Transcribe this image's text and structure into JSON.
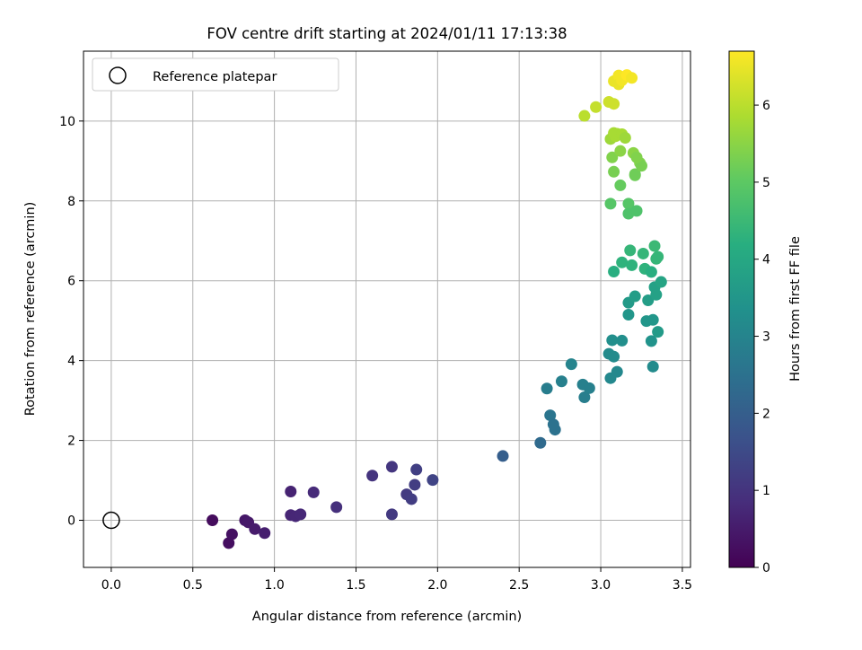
{
  "chart_data": {
    "type": "scatter",
    "title": "FOV centre drift starting at 2024/01/11 17:13:38",
    "xlabel": "Angular distance from reference (arcmin)",
    "ylabel": "Rotation from reference (arcmin)",
    "xlim": [
      -0.17,
      3.55
    ],
    "ylim": [
      -1.18,
      11.75
    ],
    "x_ticks": [
      0.0,
      0.5,
      1.0,
      1.5,
      2.0,
      2.5,
      3.0,
      3.5
    ],
    "x_tick_labels": [
      "0.0",
      "0.5",
      "1.0",
      "1.5",
      "2.0",
      "2.5",
      "3.0",
      "3.5"
    ],
    "y_ticks": [
      0,
      2,
      4,
      6,
      8,
      10
    ],
    "y_tick_labels": [
      "0",
      "2",
      "4",
      "6",
      "8",
      "10"
    ],
    "grid": true,
    "legend": {
      "position": "top-left",
      "entries": [
        "Reference platepar"
      ]
    },
    "reference_point": {
      "x": 0.0,
      "y": 0.0
    },
    "colorbar": {
      "label": "Hours from first FF file",
      "range": [
        0,
        6.7
      ],
      "ticks": [
        0,
        1,
        2,
        3,
        4,
        5,
        6
      ],
      "tick_labels": [
        "0",
        "1",
        "2",
        "3",
        "4",
        "5",
        "6"
      ],
      "colormap": "viridis"
    },
    "points": [
      {
        "x": 0.62,
        "y": 0.0,
        "t": 0.2
      },
      {
        "x": 0.72,
        "y": -0.57,
        "t": 0.25
      },
      {
        "x": 0.74,
        "y": -0.35,
        "t": 0.3
      },
      {
        "x": 0.82,
        "y": 0.0,
        "t": 0.4
      },
      {
        "x": 0.84,
        "y": -0.05,
        "t": 0.45
      },
      {
        "x": 0.88,
        "y": -0.22,
        "t": 0.5
      },
      {
        "x": 0.94,
        "y": -0.32,
        "t": 0.55
      },
      {
        "x": 1.1,
        "y": 0.72,
        "t": 0.65
      },
      {
        "x": 1.1,
        "y": 0.13,
        "t": 0.7
      },
      {
        "x": 1.13,
        "y": 0.1,
        "t": 0.72
      },
      {
        "x": 1.16,
        "y": 0.15,
        "t": 0.75
      },
      {
        "x": 1.24,
        "y": 0.7,
        "t": 0.8
      },
      {
        "x": 1.38,
        "y": 0.33,
        "t": 0.9
      },
      {
        "x": 1.6,
        "y": 1.12,
        "t": 1.0
      },
      {
        "x": 1.72,
        "y": 1.34,
        "t": 1.05
      },
      {
        "x": 1.72,
        "y": 0.15,
        "t": 1.1
      },
      {
        "x": 1.81,
        "y": 0.65,
        "t": 1.15
      },
      {
        "x": 1.84,
        "y": 0.53,
        "t": 1.2
      },
      {
        "x": 1.86,
        "y": 0.89,
        "t": 1.2
      },
      {
        "x": 1.87,
        "y": 1.27,
        "t": 1.25
      },
      {
        "x": 1.97,
        "y": 1.01,
        "t": 1.35
      },
      {
        "x": 2.4,
        "y": 1.61,
        "t": 2.0
      },
      {
        "x": 2.63,
        "y": 1.94,
        "t": 2.3
      },
      {
        "x": 2.67,
        "y": 3.3,
        "t": 2.8
      },
      {
        "x": 2.69,
        "y": 2.63,
        "t": 2.6
      },
      {
        "x": 2.71,
        "y": 2.4,
        "t": 2.5
      },
      {
        "x": 2.72,
        "y": 2.27,
        "t": 2.5
      },
      {
        "x": 2.76,
        "y": 3.48,
        "t": 2.9
      },
      {
        "x": 2.82,
        "y": 3.91,
        "t": 3.0
      },
      {
        "x": 2.89,
        "y": 3.4,
        "t": 2.9
      },
      {
        "x": 2.9,
        "y": 3.08,
        "t": 2.85
      },
      {
        "x": 2.93,
        "y": 3.31,
        "t": 2.9
      },
      {
        "x": 3.05,
        "y": 4.17,
        "t": 3.2
      },
      {
        "x": 3.06,
        "y": 3.56,
        "t": 3.1
      },
      {
        "x": 3.07,
        "y": 4.51,
        "t": 3.3
      },
      {
        "x": 3.08,
        "y": 4.1,
        "t": 3.2
      },
      {
        "x": 3.1,
        "y": 3.72,
        "t": 3.1
      },
      {
        "x": 3.13,
        "y": 4.5,
        "t": 3.3
      },
      {
        "x": 3.17,
        "y": 5.15,
        "t": 3.5
      },
      {
        "x": 3.17,
        "y": 5.45,
        "t": 3.6
      },
      {
        "x": 3.21,
        "y": 5.61,
        "t": 3.7
      },
      {
        "x": 3.28,
        "y": 4.99,
        "t": 3.5
      },
      {
        "x": 3.29,
        "y": 5.51,
        "t": 3.7
      },
      {
        "x": 3.31,
        "y": 4.49,
        "t": 3.4
      },
      {
        "x": 3.32,
        "y": 5.02,
        "t": 3.5
      },
      {
        "x": 3.32,
        "y": 3.85,
        "t": 3.2
      },
      {
        "x": 3.33,
        "y": 5.84,
        "t": 3.8
      },
      {
        "x": 3.34,
        "y": 5.65,
        "t": 3.8
      },
      {
        "x": 3.35,
        "y": 4.72,
        "t": 3.6
      },
      {
        "x": 3.37,
        "y": 5.97,
        "t": 3.9
      },
      {
        "x": 3.08,
        "y": 6.23,
        "t": 4.2
      },
      {
        "x": 3.13,
        "y": 6.46,
        "t": 4.3
      },
      {
        "x": 3.18,
        "y": 6.76,
        "t": 4.4
      },
      {
        "x": 3.19,
        "y": 6.39,
        "t": 4.3
      },
      {
        "x": 3.26,
        "y": 6.68,
        "t": 4.4
      },
      {
        "x": 3.27,
        "y": 6.3,
        "t": 4.3
      },
      {
        "x": 3.31,
        "y": 6.22,
        "t": 4.2
      },
      {
        "x": 3.33,
        "y": 6.87,
        "t": 4.5
      },
      {
        "x": 3.34,
        "y": 6.55,
        "t": 4.4
      },
      {
        "x": 3.35,
        "y": 6.6,
        "t": 4.4
      },
      {
        "x": 3.06,
        "y": 7.93,
        "t": 4.9
      },
      {
        "x": 3.17,
        "y": 7.93,
        "t": 4.9
      },
      {
        "x": 3.17,
        "y": 7.68,
        "t": 4.8
      },
      {
        "x": 3.22,
        "y": 7.75,
        "t": 4.8
      },
      {
        "x": 3.12,
        "y": 8.39,
        "t": 5.1
      },
      {
        "x": 3.08,
        "y": 8.73,
        "t": 5.3
      },
      {
        "x": 3.21,
        "y": 8.64,
        "t": 5.2
      },
      {
        "x": 3.21,
        "y": 8.67,
        "t": 5.2
      },
      {
        "x": 3.24,
        "y": 8.95,
        "t": 5.4
      },
      {
        "x": 3.25,
        "y": 8.88,
        "t": 5.3
      },
      {
        "x": 3.07,
        "y": 9.09,
        "t": 5.4
      },
      {
        "x": 3.12,
        "y": 9.25,
        "t": 5.5
      },
      {
        "x": 3.2,
        "y": 9.2,
        "t": 5.5
      },
      {
        "x": 3.22,
        "y": 9.09,
        "t": 5.4
      },
      {
        "x": 3.06,
        "y": 9.55,
        "t": 5.7
      },
      {
        "x": 3.08,
        "y": 9.7,
        "t": 5.8
      },
      {
        "x": 3.09,
        "y": 9.62,
        "t": 5.8
      },
      {
        "x": 3.1,
        "y": 9.68,
        "t": 5.8
      },
      {
        "x": 3.13,
        "y": 9.67,
        "t": 5.8
      },
      {
        "x": 3.15,
        "y": 9.58,
        "t": 5.7
      },
      {
        "x": 2.9,
        "y": 10.13,
        "t": 6.0
      },
      {
        "x": 2.97,
        "y": 10.35,
        "t": 6.1
      },
      {
        "x": 3.05,
        "y": 10.48,
        "t": 6.2
      },
      {
        "x": 3.08,
        "y": 10.43,
        "t": 6.2
      },
      {
        "x": 3.08,
        "y": 11.0,
        "t": 6.5
      },
      {
        "x": 3.11,
        "y": 11.14,
        "t": 6.6
      },
      {
        "x": 3.11,
        "y": 10.92,
        "t": 6.5
      },
      {
        "x": 3.13,
        "y": 11.02,
        "t": 6.6
      },
      {
        "x": 3.16,
        "y": 11.15,
        "t": 6.7
      },
      {
        "x": 3.19,
        "y": 11.08,
        "t": 6.6
      }
    ]
  }
}
